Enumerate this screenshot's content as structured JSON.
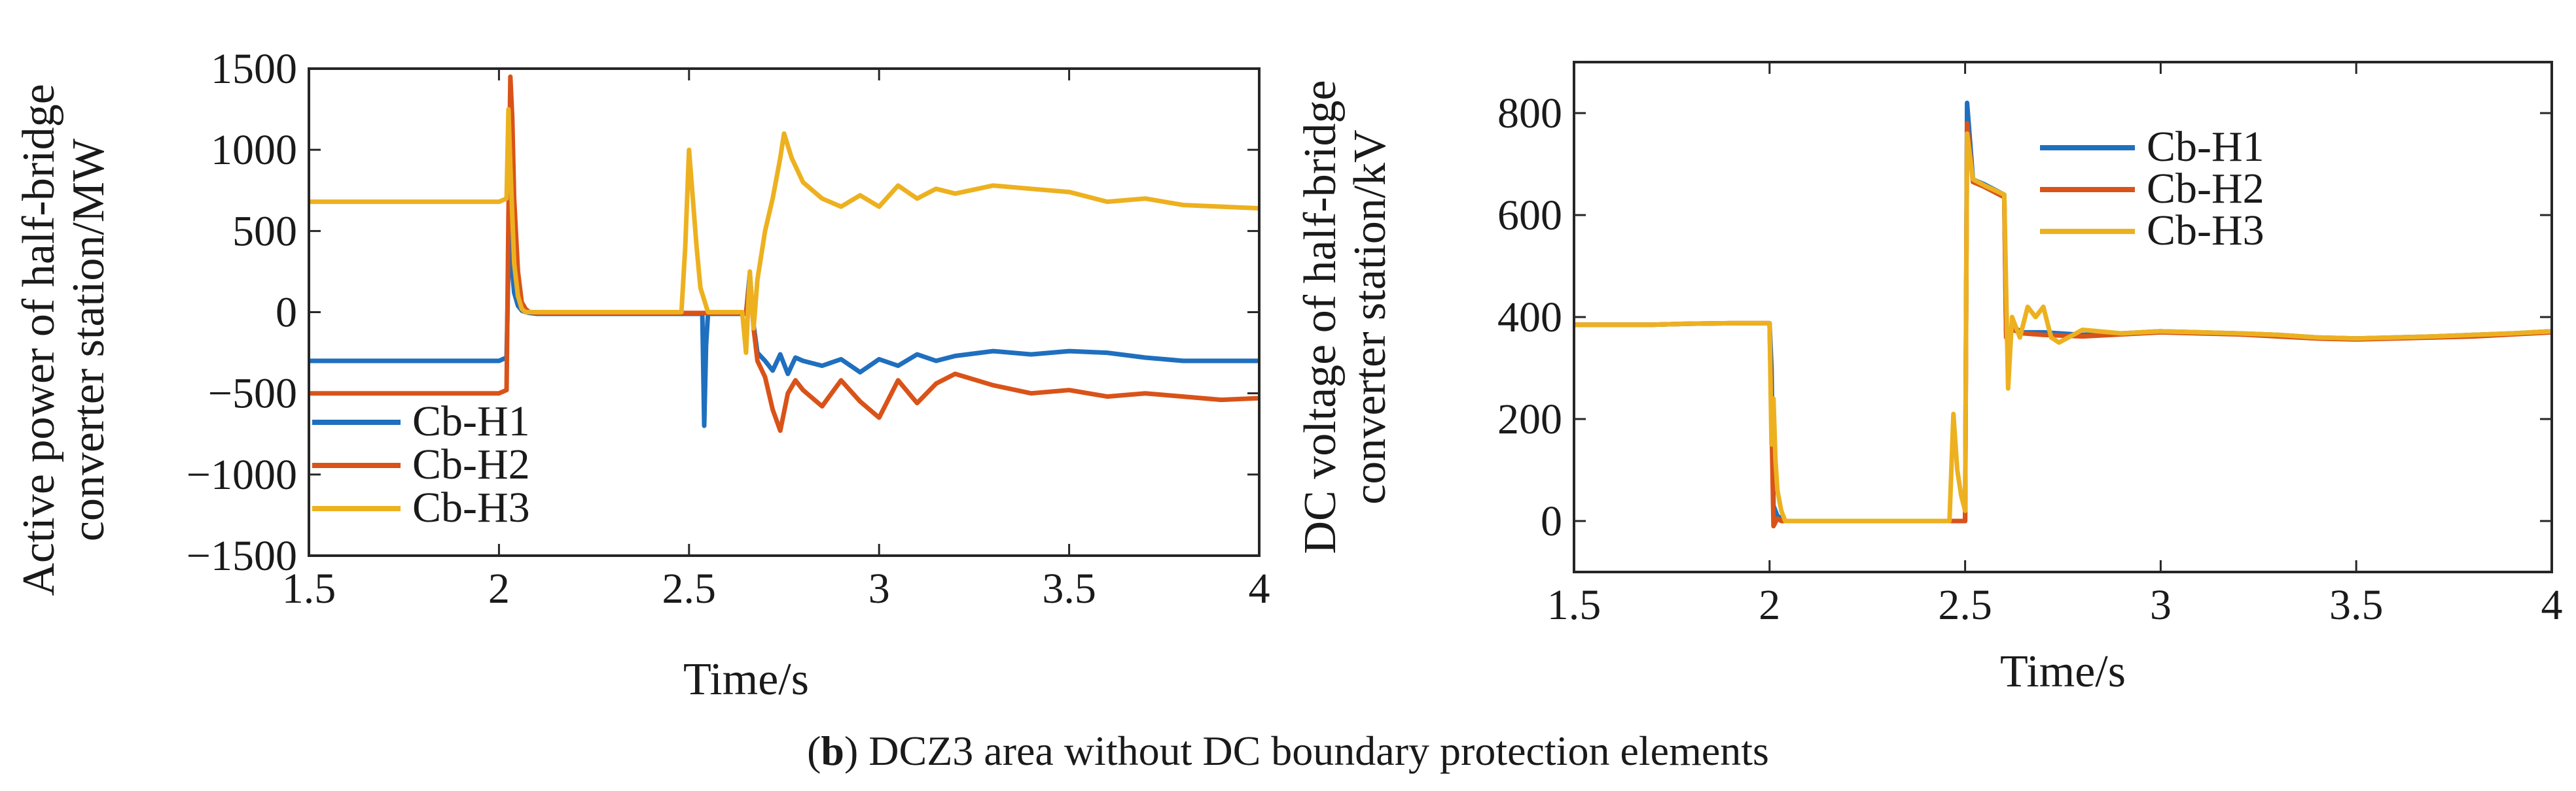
{
  "caption": {
    "panel_letter": "b",
    "open_paren": "(",
    "close_paren": ")",
    "text": " DCZ3 area without DC boundary protection elements"
  },
  "colors": {
    "Cb-H1": "#1f6fbf",
    "Cb-H2": "#d95319",
    "Cb-H3": "#edb120"
  },
  "chart_data": [
    {
      "type": "line",
      "title": "",
      "xlabel": "Time/s",
      "ylabel_line1": "Active power of half-bridge",
      "ylabel_line2": "converter station/MW",
      "xlim": [
        1.5,
        4
      ],
      "ylim": [
        -1500,
        1500
      ],
      "xticks": [
        1.5,
        2,
        2.5,
        3,
        3.5,
        4
      ],
      "xtick_labels": [
        "1.5",
        "2",
        "2.5",
        "3",
        "3.5",
        "4"
      ],
      "yticks": [
        -1500,
        -1000,
        -500,
        0,
        500,
        1000,
        1500
      ],
      "ytick_labels": [
        "−1500",
        "−1000",
        "−500",
        "0",
        "500",
        "1000",
        "1500"
      ],
      "legend_position": "bottom-left",
      "series": [
        {
          "name": "Cb-H1",
          "x": [
            1.5,
            1.6,
            1.7,
            1.8,
            1.9,
            2.0,
            2.02,
            2.025,
            2.03,
            2.035,
            2.04,
            2.05,
            2.06,
            2.07,
            2.08,
            2.1,
            2.2,
            2.3,
            2.4,
            2.48,
            2.5,
            2.52,
            2.535,
            2.54,
            2.545,
            2.55,
            2.56,
            2.6,
            2.64,
            2.65,
            2.66,
            2.67,
            2.68,
            2.7,
            2.72,
            2.74,
            2.76,
            2.78,
            2.8,
            2.85,
            2.9,
            2.95,
            3.0,
            3.05,
            3.1,
            3.15,
            3.2,
            3.3,
            3.4,
            3.5,
            3.6,
            3.7,
            3.8,
            3.9,
            4.0
          ],
          "y": [
            -300,
            -300,
            -300,
            -300,
            -300,
            -300,
            -280,
            300,
            520,
            250,
            120,
            40,
            10,
            0,
            -5,
            -10,
            -10,
            -10,
            -10,
            -10,
            -10,
            -10,
            -10,
            -700,
            -200,
            -10,
            -10,
            -10,
            -10,
            -10,
            240,
            -80,
            -250,
            -300,
            -360,
            -260,
            -380,
            -280,
            -300,
            -330,
            -290,
            -370,
            -290,
            -330,
            -260,
            -300,
            -270,
            -240,
            -260,
            -240,
            -250,
            -280,
            -300,
            -300,
            -300
          ]
        },
        {
          "name": "Cb-H2",
          "x": [
            1.5,
            1.6,
            1.7,
            1.8,
            1.9,
            2.0,
            2.02,
            2.025,
            2.03,
            2.035,
            2.04,
            2.05,
            2.06,
            2.07,
            2.08,
            2.1,
            2.2,
            2.3,
            2.4,
            2.5,
            2.6,
            2.64,
            2.65,
            2.66,
            2.67,
            2.68,
            2.7,
            2.72,
            2.74,
            2.76,
            2.78,
            2.8,
            2.85,
            2.9,
            2.95,
            3.0,
            3.05,
            3.1,
            3.15,
            3.2,
            3.3,
            3.4,
            3.5,
            3.6,
            3.7,
            3.8,
            3.9,
            4.0
          ],
          "y": [
            -500,
            -500,
            -500,
            -500,
            -500,
            -500,
            -480,
            600,
            1450,
            1200,
            700,
            250,
            60,
            20,
            0,
            -5,
            -5,
            -5,
            -5,
            -5,
            -5,
            -5,
            -5,
            200,
            -100,
            -300,
            -400,
            -600,
            -730,
            -500,
            -420,
            -480,
            -580,
            -420,
            -550,
            -650,
            -420,
            -560,
            -440,
            -380,
            -450,
            -500,
            -480,
            -520,
            -500,
            -520,
            -540,
            -530
          ]
        },
        {
          "name": "Cb-H3",
          "x": [
            1.5,
            1.6,
            1.7,
            1.8,
            1.9,
            2.0,
            2.02,
            2.025,
            2.03,
            2.035,
            2.04,
            2.05,
            2.06,
            2.07,
            2.08,
            2.1,
            2.2,
            2.3,
            2.4,
            2.48,
            2.49,
            2.5,
            2.51,
            2.52,
            2.53,
            2.55,
            2.6,
            2.64,
            2.65,
            2.66,
            2.67,
            2.68,
            2.7,
            2.72,
            2.74,
            2.75,
            2.77,
            2.8,
            2.85,
            2.9,
            2.95,
            3.0,
            3.05,
            3.1,
            3.15,
            3.2,
            3.3,
            3.4,
            3.5,
            3.6,
            3.7,
            3.8,
            3.9,
            4.0
          ],
          "y": [
            680,
            680,
            680,
            680,
            680,
            680,
            700,
            1250,
            900,
            600,
            300,
            100,
            20,
            0,
            0,
            0,
            0,
            0,
            0,
            0,
            400,
            1000,
            700,
            400,
            150,
            0,
            0,
            0,
            -250,
            250,
            -100,
            200,
            500,
            700,
            950,
            1100,
            950,
            800,
            700,
            650,
            720,
            650,
            780,
            700,
            760,
            730,
            780,
            760,
            740,
            680,
            700,
            660,
            650,
            640
          ]
        }
      ]
    },
    {
      "type": "line",
      "title": "",
      "xlabel": "Time/s",
      "ylabel_line1": "DC voltage of half-bridge",
      "ylabel_line2": "converter station/kV",
      "xlim": [
        1.5,
        4
      ],
      "ylim": [
        -100,
        900
      ],
      "xticks": [
        1.5,
        2,
        2.5,
        3,
        3.5,
        4
      ],
      "xtick_labels": [
        "1.5",
        "2",
        "2.5",
        "3",
        "3.5",
        "4"
      ],
      "yticks": [
        0,
        200,
        400,
        600,
        800
      ],
      "ytick_labels": [
        "0",
        "200",
        "400",
        "600",
        "800"
      ],
      "legend_position": "top-right",
      "series": [
        {
          "name": "Cb-H1",
          "x": [
            1.5,
            1.6,
            1.7,
            1.8,
            1.9,
            2.0,
            2.005,
            2.01,
            2.02,
            2.03,
            2.04,
            2.06,
            2.1,
            2.2,
            2.3,
            2.4,
            2.49,
            2.5,
            2.505,
            2.52,
            2.55,
            2.6,
            2.605,
            2.62,
            2.65,
            2.7,
            2.8,
            2.9,
            3.0,
            3.1,
            3.2,
            3.3,
            3.4,
            3.5,
            3.6,
            3.7,
            3.8,
            3.9,
            4.0
          ],
          "y": [
            385,
            385,
            385,
            387,
            388,
            388,
            300,
            30,
            10,
            5,
            0,
            0,
            0,
            0,
            0,
            0,
            0,
            0,
            820,
            670,
            660,
            640,
            370,
            380,
            370,
            370,
            365,
            368,
            372,
            370,
            368,
            365,
            360,
            358,
            360,
            362,
            365,
            368,
            372
          ]
        },
        {
          "name": "Cb-H2",
          "x": [
            1.5,
            1.6,
            1.7,
            1.8,
            1.9,
            2.0,
            2.005,
            2.01,
            2.02,
            2.03,
            2.04,
            2.06,
            2.1,
            2.2,
            2.3,
            2.4,
            2.49,
            2.5,
            2.505,
            2.52,
            2.55,
            2.6,
            2.605,
            2.62,
            2.65,
            2.7,
            2.8,
            2.9,
            3.0,
            3.1,
            3.2,
            3.3,
            3.4,
            3.5,
            3.6,
            3.7,
            3.8,
            3.9,
            4.0
          ],
          "y": [
            385,
            385,
            385,
            387,
            388,
            388,
            200,
            -10,
            5,
            0,
            0,
            0,
            0,
            0,
            0,
            0,
            0,
            0,
            780,
            665,
            655,
            635,
            360,
            375,
            368,
            365,
            362,
            366,
            370,
            368,
            366,
            362,
            358,
            356,
            358,
            360,
            362,
            366,
            370
          ]
        },
        {
          "name": "Cb-H3",
          "x": [
            1.5,
            1.6,
            1.7,
            1.8,
            1.9,
            2.0,
            2.005,
            2.01,
            2.015,
            2.02,
            2.03,
            2.04,
            2.06,
            2.1,
            2.2,
            2.3,
            2.4,
            2.46,
            2.47,
            2.48,
            2.49,
            2.5,
            2.505,
            2.52,
            2.55,
            2.6,
            2.605,
            2.61,
            2.62,
            2.63,
            2.64,
            2.66,
            2.68,
            2.7,
            2.72,
            2.74,
            2.8,
            2.9,
            3.0,
            3.1,
            3.2,
            3.3,
            3.4,
            3.5,
            3.6,
            3.7,
            3.8,
            3.9,
            4.0
          ],
          "y": [
            385,
            385,
            385,
            387,
            388,
            388,
            150,
            240,
            120,
            60,
            20,
            0,
            0,
            0,
            0,
            0,
            0,
            0,
            210,
            100,
            50,
            20,
            760,
            670,
            658,
            640,
            450,
            260,
            400,
            380,
            360,
            420,
            400,
            420,
            360,
            350,
            375,
            368,
            372,
            370,
            368,
            365,
            360,
            358,
            360,
            362,
            365,
            368,
            372
          ]
        }
      ]
    }
  ]
}
